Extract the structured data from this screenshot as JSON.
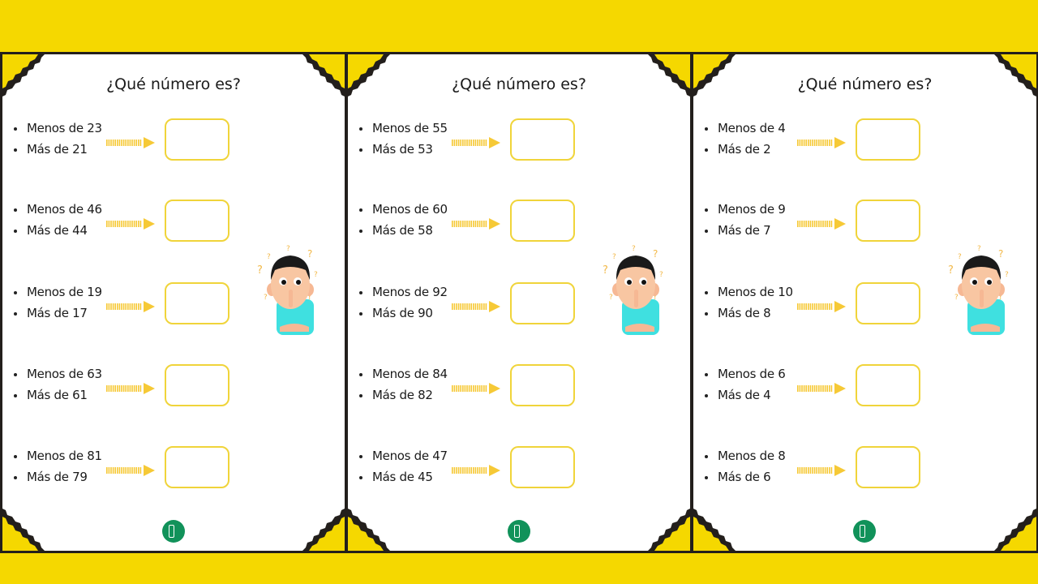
{
  "colors": {
    "background": "#f5d800",
    "border": "#231f1c",
    "box_border": "#f0d43a",
    "arrow": "#f6c936",
    "logo": "#11925a"
  },
  "panels": [
    {
      "title": "¿Qué número es?",
      "items": [
        {
          "less": "Menos de 23",
          "more": "Más de 21"
        },
        {
          "less": "Menos de 46",
          "more": "Más de 44"
        },
        {
          "less": "Menos de 19",
          "more": "Más de 17"
        },
        {
          "less": "Menos de 63",
          "more": "Más de 61"
        },
        {
          "less": "Menos de 81",
          "more": "Más de 79"
        }
      ]
    },
    {
      "title": "¿Qué número es?",
      "items": [
        {
          "less": "Menos de 55",
          "more": "Más de 53"
        },
        {
          "less": "Menos de 60",
          "more": "Más de 58"
        },
        {
          "less": "Menos de 92",
          "more": "Más de 90"
        },
        {
          "less": "Menos de 84",
          "more": "Más de 82"
        },
        {
          "less": "Menos de 47",
          "more": "Más de 45"
        }
      ]
    },
    {
      "title": "¿Qué número es?",
      "items": [
        {
          "less": "Menos de 4",
          "more": "Más de 2"
        },
        {
          "less": "Menos de 9",
          "more": "Más de 7"
        },
        {
          "less": "Menos de 10",
          "more": "Más de 8"
        },
        {
          "less": "Menos de 6",
          "more": "Más de 4"
        },
        {
          "less": "Menos de 8",
          "more": "Más de 6"
        }
      ]
    }
  ]
}
